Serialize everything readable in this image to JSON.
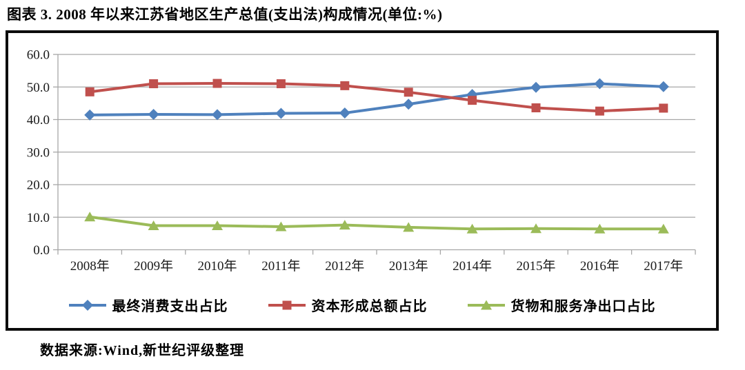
{
  "title": "图表 3. 2008 年以来江苏省地区生产总值(支出法)构成情况(单位:%)",
  "source": "数据来源:Wind,新世纪评级整理",
  "colors": {
    "series_consumption": "#4F81BD",
    "series_capital": "#C0504D",
    "series_net_export": "#9BBB59",
    "gridline": "#A6A6A6",
    "axis": "#A6A6A6",
    "frame_border": "#0c0c0c",
    "text": "#1a1a1a"
  },
  "chart_data": {
    "type": "line",
    "title": "图表 3. 2008 年以来江苏省地区生产总值(支出法)构成情况(单位:%)",
    "categories": [
      "2008年",
      "2009年",
      "2010年",
      "2011年",
      "2012年",
      "2013年",
      "2014年",
      "2015年",
      "2016年",
      "2017年"
    ],
    "series": [
      {
        "name": "最终消费支出占比",
        "marker": "diamond",
        "color": "#4F81BD",
        "values": [
          41.4,
          41.6,
          41.5,
          41.9,
          42.0,
          44.7,
          47.7,
          49.9,
          51.0,
          50.1
        ]
      },
      {
        "name": "资本形成总额占比",
        "marker": "square",
        "color": "#C0504D",
        "values": [
          48.5,
          51.0,
          51.1,
          51.0,
          50.4,
          48.4,
          45.9,
          43.6,
          42.6,
          43.5
        ]
      },
      {
        "name": "货物和服务净出口占比",
        "marker": "triangle",
        "color": "#9BBB59",
        "values": [
          10.1,
          7.4,
          7.4,
          7.1,
          7.6,
          6.9,
          6.4,
          6.5,
          6.4,
          6.4
        ]
      }
    ],
    "xlabel": "",
    "ylabel": "",
    "ylim": [
      0,
      60
    ],
    "ytick_step": 10,
    "ytick_labels": [
      "0.0",
      "10.0",
      "20.0",
      "30.0",
      "40.0",
      "50.0",
      "60.0"
    ],
    "grid": true,
    "legend_position": "bottom"
  }
}
